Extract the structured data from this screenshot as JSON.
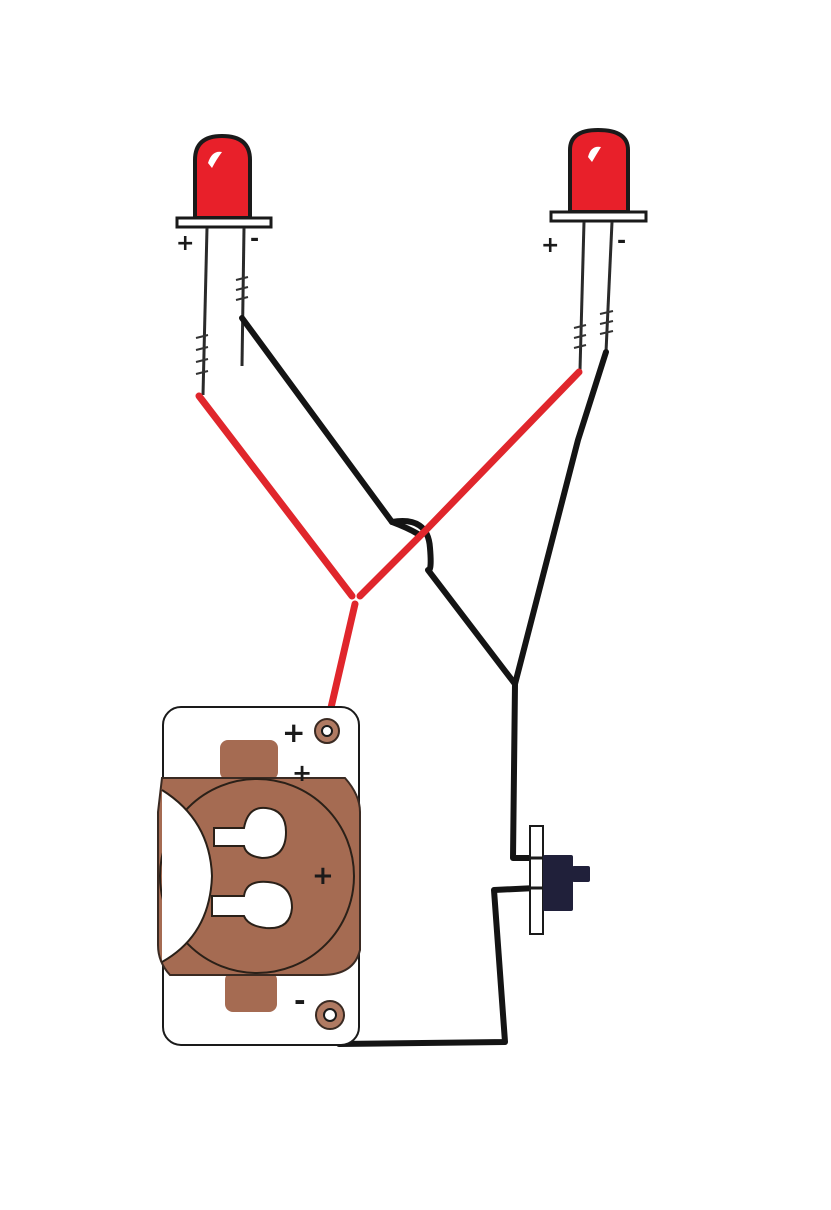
{
  "diagram": {
    "colors": {
      "background": "#ffffff",
      "led_red": "#e8202a",
      "positive_wire": "#e0262c",
      "negative_wire": "#141414",
      "battery_holder": "#a56b52",
      "switch_body": "#20203a"
    },
    "left_led": {
      "plus_label": "+",
      "minus_label": "-"
    },
    "right_led": {
      "plus_label": "+",
      "minus_label": "-"
    },
    "battery_holder": {
      "plus_terminal_label": "+",
      "plus_top_label": "+",
      "plus_center_label": "+",
      "minus_terminal_label": "-"
    },
    "switch": {
      "icon": "slide-switch-icon"
    }
  }
}
